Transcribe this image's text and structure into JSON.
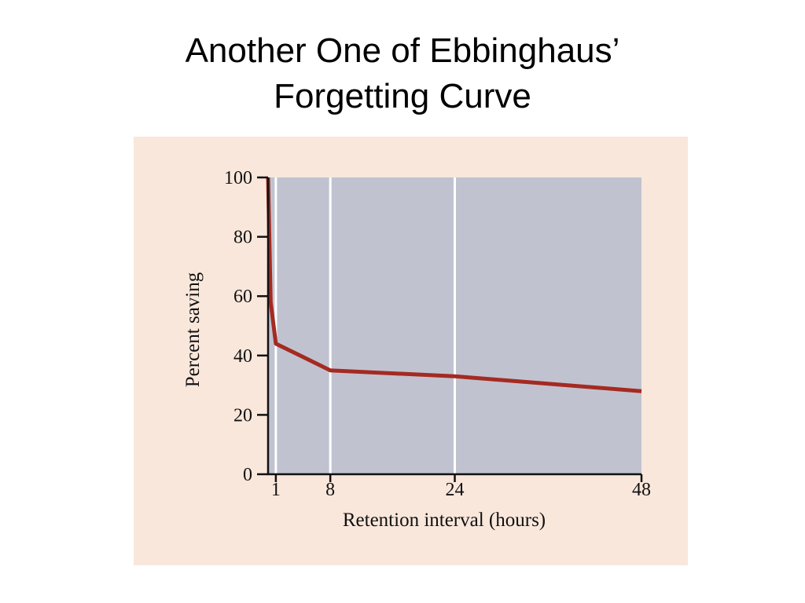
{
  "slide": {
    "title_line1": "Another One of Ebbinghaus’",
    "title_line2": "Forgetting Curve"
  },
  "colors": {
    "panel_background": "#f9e7dc",
    "plot_background": "#c0c3cf",
    "curve": "#a52a22",
    "gridline": "#ffffff",
    "axis": "#111111"
  },
  "chart_data": {
    "type": "line",
    "title": "",
    "xlabel": "Retention interval (hours)",
    "ylabel": "Percent saving",
    "xlim": [
      0,
      48
    ],
    "ylim": [
      0,
      100
    ],
    "x_ticks": [
      1,
      8,
      24,
      48
    ],
    "x_tick_labels": [
      "1",
      "8",
      "24",
      "48"
    ],
    "y_ticks": [
      0,
      20,
      40,
      60,
      80,
      100
    ],
    "y_tick_labels": [
      "0",
      "20",
      "40",
      "60",
      "80",
      "100"
    ],
    "vertical_gridlines": [
      1,
      8,
      24
    ],
    "grid": true,
    "legend": "none",
    "series": [
      {
        "x": [
          0,
          0.33,
          1,
          8,
          24,
          48
        ],
        "y": [
          100,
          58,
          44,
          35,
          33,
          28
        ]
      }
    ]
  }
}
